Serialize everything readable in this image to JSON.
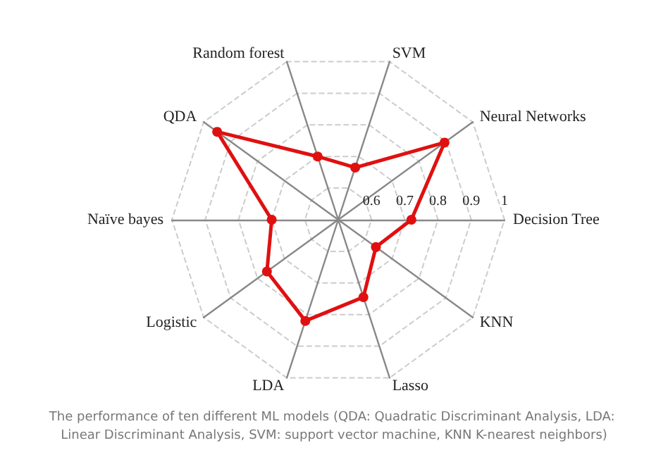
{
  "chart_data": {
    "type": "radar",
    "categories": [
      "SVM",
      "Neural Networks",
      "Decision Tree",
      "KNN",
      "Lasso",
      "LDA",
      "Logistic",
      "Naïve bayes",
      "QDA",
      "Random forest"
    ],
    "series": [
      {
        "color": "#e01010",
        "values": [
          0.665,
          0.895,
          0.72,
          0.64,
          0.745,
          0.82,
          0.765,
          0.7,
          0.95,
          0.7
        ]
      }
    ],
    "ylim": [
      0.5,
      1
    ],
    "yticks": [
      0.6,
      0.7,
      0.8,
      0.9,
      1
    ],
    "grid": true,
    "marker": "circle",
    "line_style": "solid",
    "annotations": [
      "The performance of ten different ML models (QDA: Quadratic Discriminant Analysis, LDA: Linear Discriminant Analysis, SVM: support vector machine, KNN K-nearest neighbors)"
    ]
  }
}
